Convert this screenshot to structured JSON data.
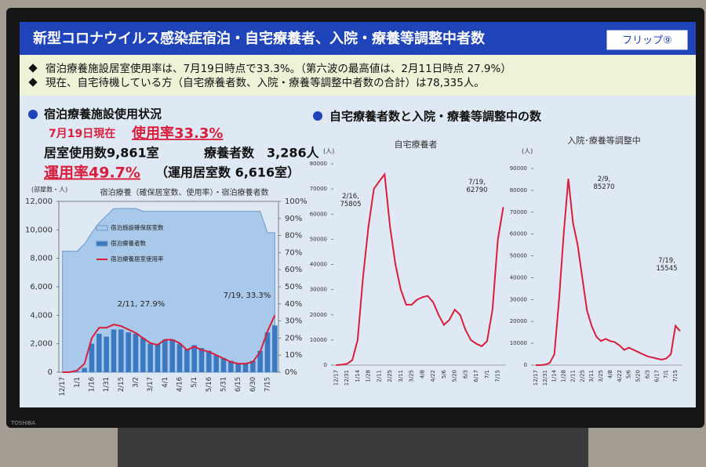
{
  "bezel": {
    "brand": "TOSHIBA"
  },
  "header": {
    "title": "新型コロナウイルス感染症宿泊・自宅療養者、入院・療養等調整中者数",
    "flip": "フリップ⑨"
  },
  "bullets": [
    "宿泊療養施設居室使用率は、7月19日時点で33.3%。（第六波の最高値は、2月11日時点 27.9%）",
    "現在、自宅待機している方（自宅療養者数、入院・療養等調整中者数の合計）は78,335人。"
  ],
  "left": {
    "heading": "宿泊療養施設使用状況",
    "date": "7月19日現在",
    "rate": "使用率33.3%",
    "rooms": "居室使用数9,861室",
    "patients": "療養者数　3,286人",
    "op_rate": "運用率49.7%",
    "op_rooms": "（運用居室数 6,616室）"
  },
  "right": {
    "heading": "自宅療養者数と入院・療養等調整中の数"
  },
  "chart_data": [
    {
      "type": "bar",
      "title": "宿泊療養（確保居室数、使用率）・宿泊療養者数",
      "y_label": "(部屋数・人)",
      "legend": "upper-left",
      "categories": [
        "12/17",
        null,
        "1/1",
        null,
        "1/16",
        null,
        "1/31",
        null,
        "2/15",
        null,
        "3/2",
        null,
        "3/17",
        null,
        "4/1",
        null,
        "4/16",
        null,
        "5/1",
        null,
        "5/16",
        null,
        "5/31",
        null,
        "6/15",
        null,
        "6/30",
        null,
        "7/15",
        null
      ],
      "series": [
        {
          "name": "宿泊施設確保居室数",
          "kind": "area",
          "color": "#a9c9ea",
          "values": [
            8500,
            8500,
            8500,
            9000,
            9800,
            10500,
            11000,
            11500,
            11500,
            11500,
            11500,
            11300,
            11300,
            11300,
            11300,
            11300,
            11300,
            11300,
            11300,
            11300,
            11300,
            11300,
            11300,
            11300,
            11300,
            11300,
            11300,
            11300,
            9800,
            9800
          ]
        },
        {
          "name": "宿泊療養者数",
          "kind": "bar",
          "color": "#3b78c2",
          "values": [
            0,
            0,
            50,
            300,
            2000,
            2700,
            2500,
            3000,
            3000,
            2800,
            2700,
            2400,
            2000,
            2000,
            2300,
            2300,
            2000,
            1600,
            1900,
            1700,
            1500,
            1200,
            1000,
            800,
            600,
            600,
            800,
            1500,
            2800,
            3286
          ]
        },
        {
          "name": "宿泊療養居室使用率",
          "kind": "line",
          "axis": "y2",
          "color": "#d81e3c",
          "values": [
            0,
            0,
            1,
            5,
            20,
            26,
            26,
            27.9,
            27,
            25,
            23,
            20,
            17,
            16,
            19,
            19,
            17,
            13,
            15,
            13,
            12,
            10,
            8,
            6,
            5,
            5,
            6,
            12,
            24,
            33.3
          ]
        }
      ],
      "ylim": [
        0,
        12000
      ],
      "yticks": [
        0,
        {
          "value": 2000,
          "label": "2,000"
        },
        {
          "value": 4000,
          "label": "4,000"
        },
        {
          "value": 6000,
          "label": "6,000"
        },
        {
          "value": 8000,
          "label": "8,000"
        },
        {
          "value": 10000,
          "label": "10,000"
        },
        {
          "value": 12000,
          "label": "12,000"
        }
      ],
      "y2lim": [
        0,
        100
      ],
      "y2ticks": [
        {
          "value": 0,
          "label": "0%"
        },
        {
          "value": 10,
          "label": "10%"
        },
        {
          "value": 20,
          "label": "20%"
        },
        {
          "value": 30,
          "label": "30%"
        },
        {
          "value": 40,
          "label": "40%"
        },
        {
          "value": 50,
          "label": "50%"
        },
        {
          "value": 60,
          "label": "60%"
        },
        {
          "value": 70,
          "label": "70%"
        },
        {
          "value": 80,
          "label": "80%"
        },
        {
          "value": 90,
          "label": "90%"
        },
        {
          "value": 100,
          "label": "100%"
        }
      ],
      "annotations": [
        "2/11, 27.9%",
        "7/19, 33.3%"
      ]
    },
    {
      "type": "line",
      "title": "自宅療養者",
      "y_label": "(人)",
      "categories": [
        "12/17",
        null,
        "12/31",
        null,
        "1/14",
        null,
        "1/28",
        null,
        "2/11",
        null,
        "2/25",
        null,
        "3/11",
        null,
        "3/25",
        null,
        "4/8",
        null,
        "4/22",
        null,
        "5/6",
        null,
        "5/20",
        null,
        "6/3",
        null,
        "6/17",
        null,
        "7/1",
        null,
        "7/15",
        null
      ],
      "series": [
        {
          "color": "#d81e3c",
          "values": [
            0,
            200,
            500,
            2000,
            10000,
            35000,
            55000,
            70000,
            73000,
            75805,
            55000,
            40000,
            30000,
            24000,
            24000,
            26000,
            27000,
            27500,
            25000,
            20000,
            16000,
            18000,
            22000,
            20000,
            14000,
            10000,
            8500,
            7500,
            9500,
            22000,
            50000,
            62790
          ]
        }
      ],
      "ylim": [
        0,
        80000
      ],
      "yticks": [
        0,
        10000,
        20000,
        30000,
        40000,
        50000,
        60000,
        70000,
        80000
      ],
      "annotations": [
        "2/16,\n75805",
        "7/19,\n62790"
      ]
    },
    {
      "type": "line",
      "title": "入院･療養等調整中",
      "y_label": "(人)",
      "categories": [
        "12/17",
        null,
        "12/31",
        null,
        "1/14",
        null,
        "1/28",
        null,
        "2/11",
        null,
        "2/25",
        null,
        "3/11",
        null,
        "3/25",
        null,
        "4/8",
        null,
        "4/22",
        null,
        "5/6",
        null,
        "5/20",
        null,
        "6/3",
        null,
        "6/17",
        null,
        "7/1",
        null,
        "7/15",
        null
      ],
      "series": [
        {
          "color": "#d81e3c",
          "values": [
            0,
            0,
            200,
            1000,
            5000,
            30000,
            60000,
            85270,
            65000,
            55000,
            40000,
            25000,
            18000,
            13000,
            11000,
            12000,
            11000,
            10500,
            9000,
            7000,
            8000,
            7000,
            6000,
            5000,
            4000,
            3500,
            3000,
            2500,
            3000,
            5000,
            18000,
            15545
          ]
        }
      ],
      "ylim": [
        0,
        90000
      ],
      "yticks": [
        0,
        10000,
        20000,
        30000,
        40000,
        50000,
        60000,
        70000,
        80000,
        90000
      ],
      "annotations": [
        "2/9,\n85270",
        "7/19,\n15545"
      ]
    }
  ]
}
